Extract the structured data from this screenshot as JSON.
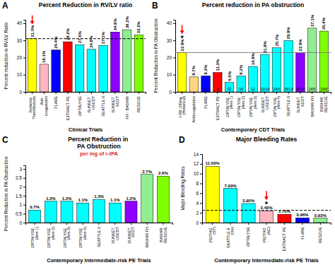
{
  "chart_data": [
    {
      "type": "bar",
      "panel": "A",
      "title": "Percent Reduction in RV/LV ratio",
      "xlabel": "Clinical Trials",
      "ylabel": "Percent reduction in RV/LV Ratio",
      "categories": [
        "Systemic\nThrombolysis",
        "Anti-\ncoagulation",
        "FLARE",
        "EXTRACT PE",
        "OPTALYSE",
        "SUNSET\nUSCDT",
        "SEATTLE II",
        "SUNSET\nSCOT",
        "FH - BASHIR",
        "RESCUE"
      ],
      "values": [
        31.0,
        16.1,
        24.4,
        29.2,
        27.5,
        24.8,
        27.1,
        34.9,
        36.2,
        33.2
      ],
      "value_labels": [
        "31.0%",
        "16.1%",
        "24.4%",
        "29.2%",
        "27.5%",
        "24.8%",
        "27.1%",
        "34.9%",
        "36.2%",
        "33.2%"
      ],
      "colors": [
        "#FFFF00",
        "#FFB6C1",
        "#0000FF",
        "#FF0000",
        "#00FFFF",
        "#00FFFF",
        "#00FFFF",
        "#8B00FF",
        "#90EE90",
        "#7FFF00"
      ],
      "ylim": [
        0,
        42
      ],
      "yticks": [
        0,
        10,
        20,
        30,
        40
      ],
      "grid": false,
      "data_labels": true,
      "reference_line": {
        "value": 31.0,
        "color": "black",
        "line_style": "dashed"
      },
      "arrow": {
        "category": "Systemic\nThrombolysis",
        "color": "red"
      }
    },
    {
      "type": "bar",
      "panel": "B",
      "title": "Percent reduction in PA obstruction",
      "xlabel": "Contemporary CDT Trials",
      "ylabel": "Percent Reduction in PA Obstruction",
      "categories": [
        "t-PA 100mg\n(Historical)",
        "Anticoagulation",
        "FLARE",
        "EXTRACT PE",
        "OPTALYSE\n(Arm 1)",
        "OPTALYSE\n(Arm 2)",
        "OPTALYSE\n(Arm 3)",
        "SUNSET\nUSCDT",
        "OPTALYSE\n(Arm 4)",
        "SEATTLE II",
        "SUNSET\nSCOT",
        "BASHIR FH",
        "BASHIR\nRESCUE"
      ],
      "values": [
        22.9,
        8.7,
        9.3,
        11.3,
        5.5,
        9.2,
        14.8,
        21.8,
        25.7,
        29.9,
        22.9,
        37.1,
        35.4
      ],
      "value_labels": [
        "22.9%",
        "8.7%",
        "9.3%",
        "11.3%",
        "5.5%",
        "9.2%",
        "14.8%",
        "21.8%",
        "25.7%",
        "29.9%",
        "22.9%",
        "37.1%",
        "35.4%"
      ],
      "colors": [
        "#FFFF00",
        "#FFD580",
        "#0000FF",
        "#FF0000",
        "#00FFFF",
        "#00FFFF",
        "#00FFFF",
        "#00FFFF",
        "#00FFFF",
        "#00FFFF",
        "#8B00FF",
        "#90EE90",
        "#7FFF00"
      ],
      "sample_sizes": [
        null,
        null,
        "0",
        "0",
        "02",
        "04",
        "12",
        "19/14",
        "24/6",
        "39/13",
        "39/14",
        "14/5",
        "14/5"
      ],
      "ylim": [
        0,
        42
      ],
      "yticks": [
        0,
        10,
        20,
        30,
        40
      ],
      "grid": false,
      "data_labels": true,
      "reference_line": {
        "value": 22.9,
        "color": "gray",
        "line_style": "solid"
      },
      "annotations": [
        {
          "text": "*",
          "category": "t-PA 100mg\n(Historical)"
        }
      ],
      "arrow": {
        "category": "t-PA 100mg\n(Historical)",
        "color": "red"
      }
    },
    {
      "type": "bar",
      "panel": "C",
      "title": "Percent Reduction in\nPA Obstruction",
      "subtitle": "per mg of r-tPA",
      "xlabel": "Contemporary Intermediate-risk PE Trials",
      "ylabel": "Percent Reduction in PA Obstruction",
      "categories": [
        "OPTALYSE\n(Arm 1)",
        "OPTALYSE\n(Arm 2)",
        "OPTALYSE\n(Arm 3)",
        "OPTALYSE\n(Arm 4)",
        "SEATTLE II",
        "SUNSET\nUSCDT",
        "SUNSET\nSCOT",
        "BASHIR FH",
        "BASHIR\nRESCUE"
      ],
      "values": [
        0.7,
        1.2,
        1.2,
        1.1,
        1.3,
        1.1,
        1.2,
        2.7,
        2.6
      ],
      "value_labels": [
        "0.7%",
        "1.2%",
        "1.2%",
        "1.1%",
        "1.3%",
        "1.1%",
        "1.2%",
        "2.7%",
        "2.6%"
      ],
      "colors": [
        "#00FFFF",
        "#00FFFF",
        "#00FFFF",
        "#00FFFF",
        "#00FFFF",
        "#00FFFF",
        "#8B00FF",
        "#90EE90",
        "#7FFF00"
      ],
      "ylim": [
        0,
        3.2
      ],
      "yticks": [
        0,
        0.5,
        1,
        1.5,
        2,
        2.5,
        3
      ],
      "grid": false,
      "data_labels": true
    },
    {
      "type": "bar",
      "panel": "D",
      "title": "Major Bleeding Rates",
      "xlabel": "Contemporary Intermediate-risk PE Trials",
      "ylabel": "Major Bleeding Rates",
      "categories": [
        "PEITHO\n(ST)",
        "SEATTLE II\nFPH",
        "OPTALYSE",
        "PEITHO\n(AC)",
        "EXTRACT PE",
        "FLARE",
        "RESCUE"
      ],
      "values": [
        11.5,
        7.0,
        3.9,
        2.4,
        1.7,
        0.96,
        0.92
      ],
      "value_labels": [
        "11.50%",
        "7.00%",
        "3.90%",
        "2.40%",
        "1.70%",
        "0.96%",
        "0.92%"
      ],
      "colors": [
        "#FFFF00",
        "#00FFFF",
        "#00FFFF",
        "#FFB6C1",
        "#FF0000",
        "#0000FF",
        "#90EE90"
      ],
      "ylim": [
        0,
        14
      ],
      "yticks": [
        0,
        2,
        4,
        6,
        8,
        10,
        12,
        14
      ],
      "grid": false,
      "data_labels": true,
      "reference_line": {
        "value": 2.5,
        "color": "black",
        "line_style": "dashed"
      },
      "annotations": [
        {
          "text": "*",
          "category": "PEITHO\n(AC)"
        }
      ],
      "arrow": {
        "category": "PEITHO\n(AC)",
        "color": "red"
      }
    }
  ]
}
